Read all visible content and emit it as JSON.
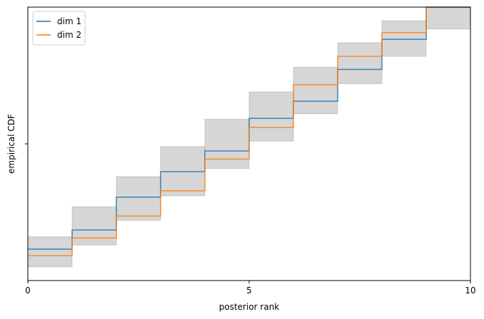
{
  "chart_data": {
    "type": "line",
    "title": "",
    "xlabel": "posterior rank",
    "ylabel": "empirical CDF",
    "xlim": [
      0,
      10
    ],
    "ylim": [
      0,
      1
    ],
    "xticks": [
      0,
      5,
      10
    ],
    "xtick_labels": [
      "0",
      "5",
      "10"
    ],
    "yticks": [
      0.5
    ],
    "ytick_labels": [
      ""
    ],
    "grid": false,
    "legend_position": "top-left",
    "band": {
      "color": "#bbbbbb",
      "x": [
        0,
        1,
        2,
        3,
        4,
        5,
        6,
        7,
        8,
        9,
        10
      ],
      "lower": [
        0.05,
        0.13,
        0.22,
        0.31,
        0.41,
        0.51,
        0.61,
        0.72,
        0.82,
        0.92,
        1.0
      ],
      "upper": [
        0.16,
        0.27,
        0.38,
        0.49,
        0.59,
        0.69,
        0.78,
        0.87,
        0.95,
        1.0,
        1.0
      ]
    },
    "series": [
      {
        "name": "dim 1",
        "color": "#1f77b4",
        "x": [
          0,
          1,
          2,
          3,
          4,
          5,
          6,
          7,
          8,
          9,
          10
        ],
        "values": [
          0.115,
          0.185,
          0.305,
          0.398,
          0.474,
          0.593,
          0.656,
          0.772,
          0.882,
          1.0,
          1.0
        ]
      },
      {
        "name": "dim 2",
        "color": "#ff7f0e",
        "x": [
          0,
          1,
          2,
          3,
          4,
          5,
          6,
          7,
          8,
          9,
          10
        ],
        "values": [
          0.091,
          0.156,
          0.236,
          0.328,
          0.444,
          0.56,
          0.716,
          0.82,
          0.907,
          1.0,
          1.0
        ]
      }
    ]
  }
}
